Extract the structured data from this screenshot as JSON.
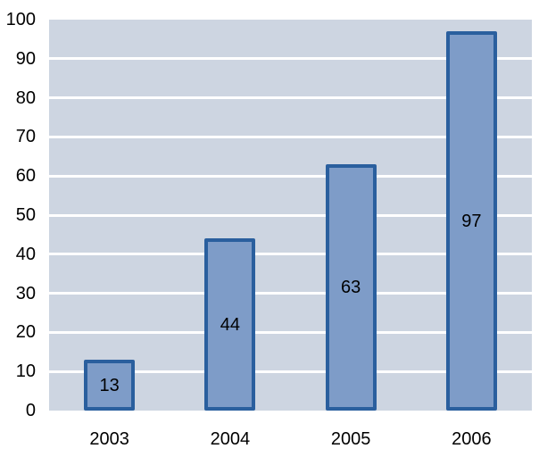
{
  "chart_data": {
    "type": "bar",
    "title": "",
    "xlabel": "",
    "ylabel": "",
    "categories": [
      "2003",
      "2004",
      "2005",
      "2006"
    ],
    "values": [
      13,
      44,
      63,
      97
    ],
    "data_labels": [
      "13",
      "44",
      "63",
      "97"
    ],
    "ylim": [
      0,
      100
    ],
    "yticks": [
      0,
      10,
      20,
      30,
      40,
      50,
      60,
      70,
      80,
      90,
      100
    ],
    "ytick_labels": [
      "0",
      "10",
      "20",
      "30",
      "40",
      "50",
      "60",
      "70",
      "80",
      "90",
      "100"
    ],
    "gridlines": {
      "orientation": "horizontal",
      "at": [
        10,
        20,
        30,
        40,
        50,
        60,
        70,
        80,
        90
      ]
    },
    "legend": "none",
    "colors": {
      "page_background": "#ffffff",
      "plot_background": "#cdd5e1",
      "bar_fill": "#7e9cc8",
      "bar_border": "#2a5f9e",
      "gridline": "#ffffff",
      "text": "#000000"
    }
  }
}
